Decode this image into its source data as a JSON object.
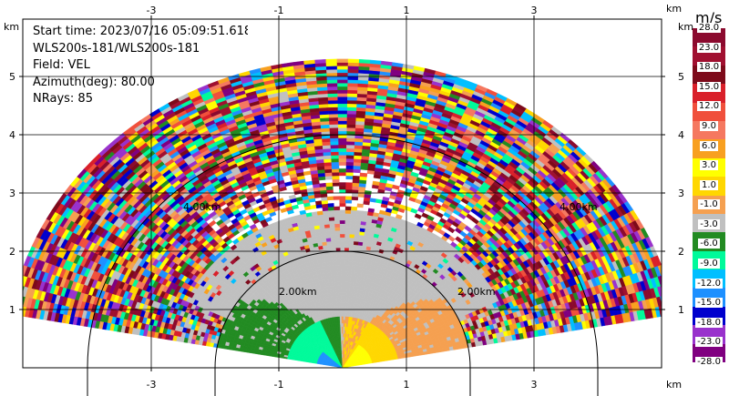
{
  "info": {
    "start_time": "Start time: 2023/07/16 05:09:51.618",
    "site": "WLS200s-181/WLS200s-181",
    "field": "Field: VEL",
    "azimuth": "Azimuth(deg): 80.00",
    "nrays": "NRays: 85"
  },
  "colorbar": {
    "unit": "m/s",
    "labels": [
      "28.0",
      "23.0",
      "18.0",
      "15.0",
      "12.0",
      "9.0",
      "6.0",
      "3.0",
      "1.0",
      "-1.0",
      "-3.0",
      "-6.0",
      "-9.0",
      "-12.0",
      "-15.0",
      "-18.0",
      "-23.0",
      "-28.0"
    ],
    "colors": [
      "#8b0a2e",
      "#a01030",
      "#7d0a1a",
      "#d9202a",
      "#f0503c",
      "#f57860",
      "#f8a020",
      "#ffff00",
      "#ffd700",
      "#f5a050",
      "#c0c0c0",
      "#228b22",
      "#00fa9a",
      "#00bfff",
      "#1e90ff",
      "#0000cd",
      "#9932cc",
      "#800080"
    ]
  },
  "chart_data": {
    "type": "heatmap",
    "title": "",
    "xlabel": "km",
    "ylabel": "km",
    "x_ticks": [
      -3,
      -1,
      1,
      3
    ],
    "y_ticks": [
      1,
      2,
      3,
      4,
      5
    ],
    "xlim": [
      -5,
      5.7
    ],
    "ylim": [
      0,
      6
    ],
    "range_ring_labels": [
      "2.00km",
      "2.00km",
      "4.00km",
      "4.00km"
    ],
    "range_rings_km": [
      2,
      4
    ],
    "max_range_km": 5.3,
    "sector_deg": [
      -80,
      80
    ],
    "velocity_zones": [
      {
        "range_km": [
          0,
          0.9
        ],
        "left": "#00fa9a",
        "right": "#ffd700",
        "far_left": "#1e90ff",
        "far_right": "#ffff00"
      },
      {
        "range_km": [
          0.9,
          2.0
        ],
        "left": "#228b22",
        "right": "#f5a050",
        "center": "#c0c0c0"
      },
      {
        "range_km": [
          2.0,
          2.7
        ],
        "dominant": "#c0c0c0"
      },
      {
        "range_km": [
          2.7,
          5.3
        ],
        "dominant": "noise"
      }
    ]
  }
}
